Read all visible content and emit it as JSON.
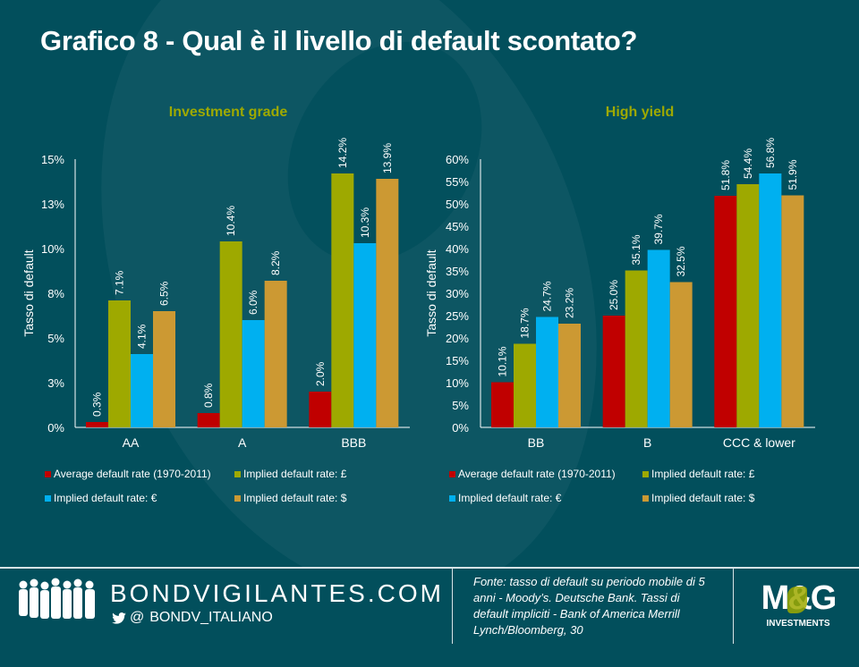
{
  "title": "Grafico 8 - Qual è il livello di default scontato?",
  "colors": {
    "background": "#024f5c",
    "series_red": "#c00000",
    "series_olive": "#9ea900",
    "series_blue": "#00b0f0",
    "series_gold": "#cc9933",
    "subtitle": "#9ea900"
  },
  "chart_data": [
    {
      "type": "bar",
      "title": "Investment grade",
      "ylabel": "Tasso di default",
      "xlabel": "",
      "categories": [
        "AA",
        "A",
        "BBB"
      ],
      "ylim": [
        0,
        15
      ],
      "yticks": [
        0,
        2.5,
        5,
        7.5,
        10,
        12.5,
        15
      ],
      "ytick_labels": [
        "0%",
        "3%",
        "5%",
        "8%",
        "10%",
        "13%",
        "15%"
      ],
      "grid": false,
      "legend": "bottom",
      "series": [
        {
          "name": "Average default rate (1970-2011)",
          "color": "#c00000",
          "values": [
            0.3,
            0.8,
            2.0
          ],
          "labels": [
            "0.3%",
            "0.8%",
            "2.0%"
          ]
        },
        {
          "name": "Implied default rate: £",
          "color": "#9ea900",
          "values": [
            7.1,
            10.4,
            14.2
          ],
          "labels": [
            "7.1%",
            "10.4%",
            "14.2%"
          ]
        },
        {
          "name": "Implied  default rate: €",
          "color": "#00b0f0",
          "values": [
            4.1,
            6.0,
            10.3
          ],
          "labels": [
            "4.1%",
            "6.0%",
            "10.3%"
          ]
        },
        {
          "name": "Implied default rate: $",
          "color": "#cc9933",
          "values": [
            6.5,
            8.2,
            13.9
          ],
          "labels": [
            "6.5%",
            "8.2%",
            "13.9%"
          ]
        }
      ]
    },
    {
      "type": "bar",
      "title": "High yield",
      "ylabel": "Tasso di default",
      "xlabel": "",
      "categories": [
        "BB",
        "B",
        "CCC & lower"
      ],
      "ylim": [
        0,
        60
      ],
      "yticks": [
        0,
        5,
        10,
        15,
        20,
        25,
        30,
        35,
        40,
        45,
        50,
        55,
        60
      ],
      "ytick_labels": [
        "0%",
        "5%",
        "10%",
        "15%",
        "20%",
        "25%",
        "30%",
        "35%",
        "40%",
        "45%",
        "50%",
        "55%",
        "60%"
      ],
      "grid": false,
      "legend": "bottom",
      "series": [
        {
          "name": "Average default rate (1970-2011)",
          "color": "#c00000",
          "values": [
            10.1,
            25.0,
            51.8
          ],
          "labels": [
            "10.1%",
            "25.0%",
            "51.8%"
          ]
        },
        {
          "name": "Implied default rate: £",
          "color": "#9ea900",
          "values": [
            18.7,
            35.1,
            54.4
          ],
          "labels": [
            "18.7%",
            "35.1%",
            "54.4%"
          ]
        },
        {
          "name": "Implied  default rate: €",
          "color": "#00b0f0",
          "values": [
            24.7,
            39.7,
            56.8
          ],
          "labels": [
            "24.7%",
            "39.7%",
            "56.8%"
          ]
        },
        {
          "name": "Implied default rate: $",
          "color": "#cc9933",
          "values": [
            23.2,
            32.5,
            51.9
          ],
          "labels": [
            "23.2%",
            "32.5%",
            "51.9%"
          ]
        }
      ]
    }
  ],
  "footer": {
    "site": "BONDVIGILANTES.COM",
    "handle_prefix": "@",
    "handle": "BONDV_ITALIANO",
    "source": "Fonte: tasso di default su periodo mobile di 5 anni - Moody’s. Deutsche Bank. Tassi di default impliciti - Bank of America Merrill Lynch/Bloomberg, 30",
    "logo_text": "M&G",
    "logo_subtext": "INVESTMENTS"
  }
}
